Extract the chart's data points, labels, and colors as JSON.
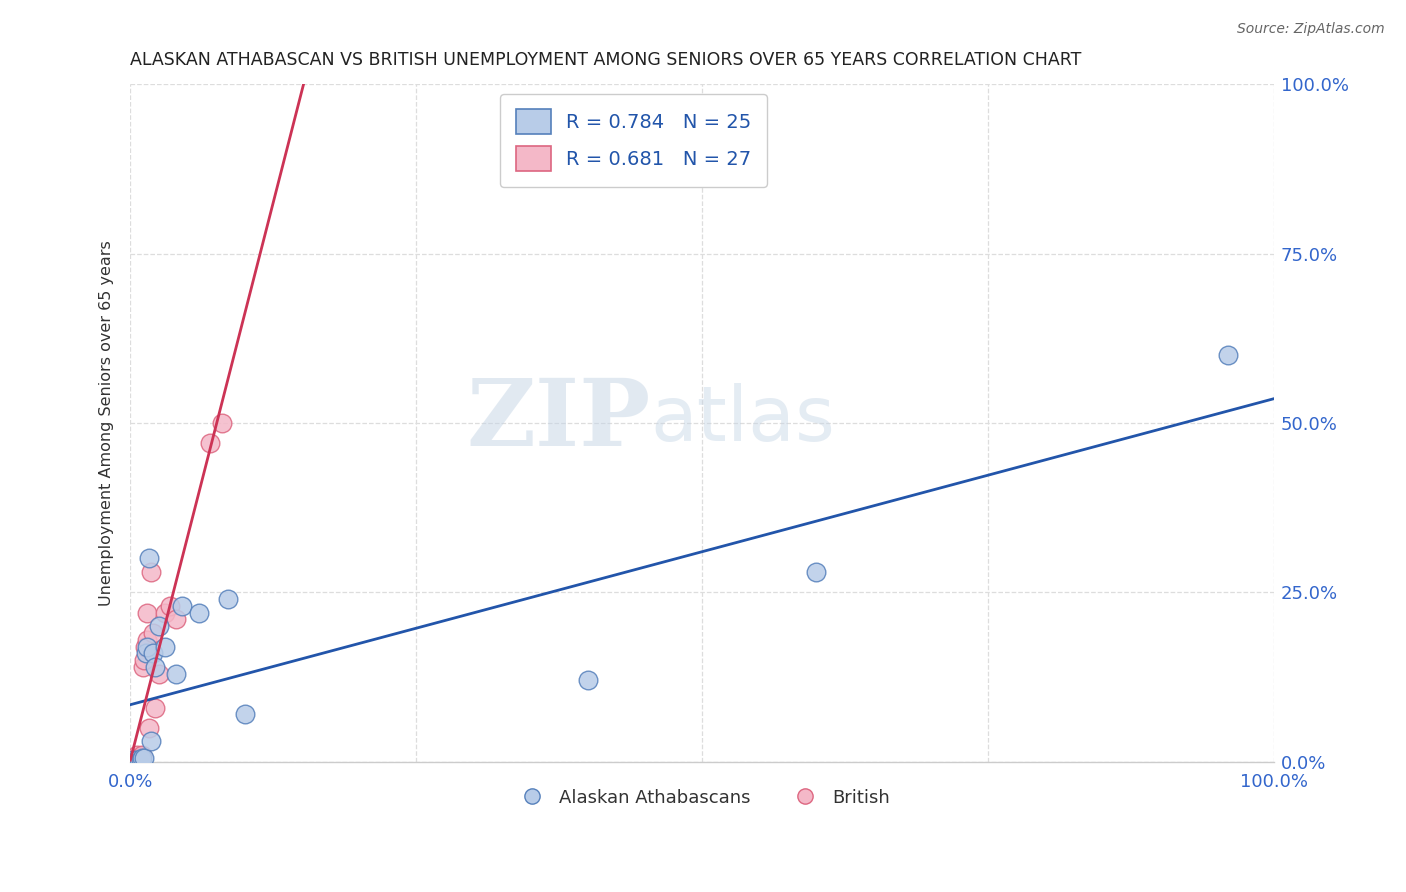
{
  "title": "ALASKAN ATHABASCAN VS BRITISH UNEMPLOYMENT AMONG SENIORS OVER 65 YEARS CORRELATION CHART",
  "source": "Source: ZipAtlas.com",
  "ylabel": "Unemployment Among Seniors over 65 years",
  "watermark_zip": "ZIP",
  "watermark_atlas": "atlas",
  "blue_R": 0.784,
  "blue_N": 25,
  "pink_R": 0.681,
  "pink_N": 27,
  "legend_label_blue": "Alaskan Athabascans",
  "legend_label_pink": "British",
  "blue_face_color": "#b8cce8",
  "pink_face_color": "#f4b8c8",
  "blue_edge_color": "#5580bb",
  "pink_edge_color": "#dd6680",
  "blue_line_color": "#2255AA",
  "pink_line_color": "#cc3355",
  "ytick_color": "#3366CC",
  "xtick_color": "#3366CC",
  "blue_x": [
    0.001,
    0.002,
    0.003,
    0.005,
    0.006,
    0.008,
    0.009,
    0.01,
    0.012,
    0.014,
    0.015,
    0.016,
    0.018,
    0.02,
    0.022,
    0.025,
    0.03,
    0.04,
    0.045,
    0.06,
    0.085,
    0.1,
    0.4,
    0.6,
    0.96
  ],
  "blue_y": [
    0.0,
    0.002,
    0.0,
    0.0,
    0.002,
    0.0,
    0.003,
    0.005,
    0.005,
    0.16,
    0.17,
    0.3,
    0.03,
    0.16,
    0.14,
    0.2,
    0.17,
    0.13,
    0.23,
    0.22,
    0.24,
    0.07,
    0.12,
    0.28,
    0.6
  ],
  "pink_x": [
    0.001,
    0.002,
    0.003,
    0.003,
    0.004,
    0.004,
    0.005,
    0.006,
    0.007,
    0.008,
    0.009,
    0.01,
    0.011,
    0.012,
    0.013,
    0.015,
    0.015,
    0.016,
    0.018,
    0.02,
    0.022,
    0.025,
    0.03,
    0.035,
    0.04,
    0.07,
    0.08
  ],
  "pink_y": [
    0.0,
    0.0,
    0.0,
    0.0,
    0.0,
    0.001,
    0.003,
    0.01,
    0.005,
    0.0,
    0.005,
    0.01,
    0.14,
    0.15,
    0.17,
    0.18,
    0.22,
    0.05,
    0.28,
    0.19,
    0.08,
    0.13,
    0.22,
    0.23,
    0.21,
    0.47,
    0.5
  ],
  "figsize": [
    14.06,
    8.92
  ],
  "dpi": 100,
  "xlim": [
    0.0,
    1.0
  ],
  "ylim": [
    0.0,
    1.0
  ],
  "yticks": [
    0.0,
    0.25,
    0.5,
    0.75,
    1.0
  ],
  "ytick_labels": [
    "0.0%",
    "25.0%",
    "50.0%",
    "75.0%",
    "100.0%"
  ],
  "xticks": [
    0.0,
    0.25,
    0.5,
    0.75,
    1.0
  ],
  "xtick_labels": [
    "0.0%",
    "",
    "",
    "",
    "100.0%"
  ],
  "grid_color": "#dddddd",
  "spine_color": "#cccccc"
}
